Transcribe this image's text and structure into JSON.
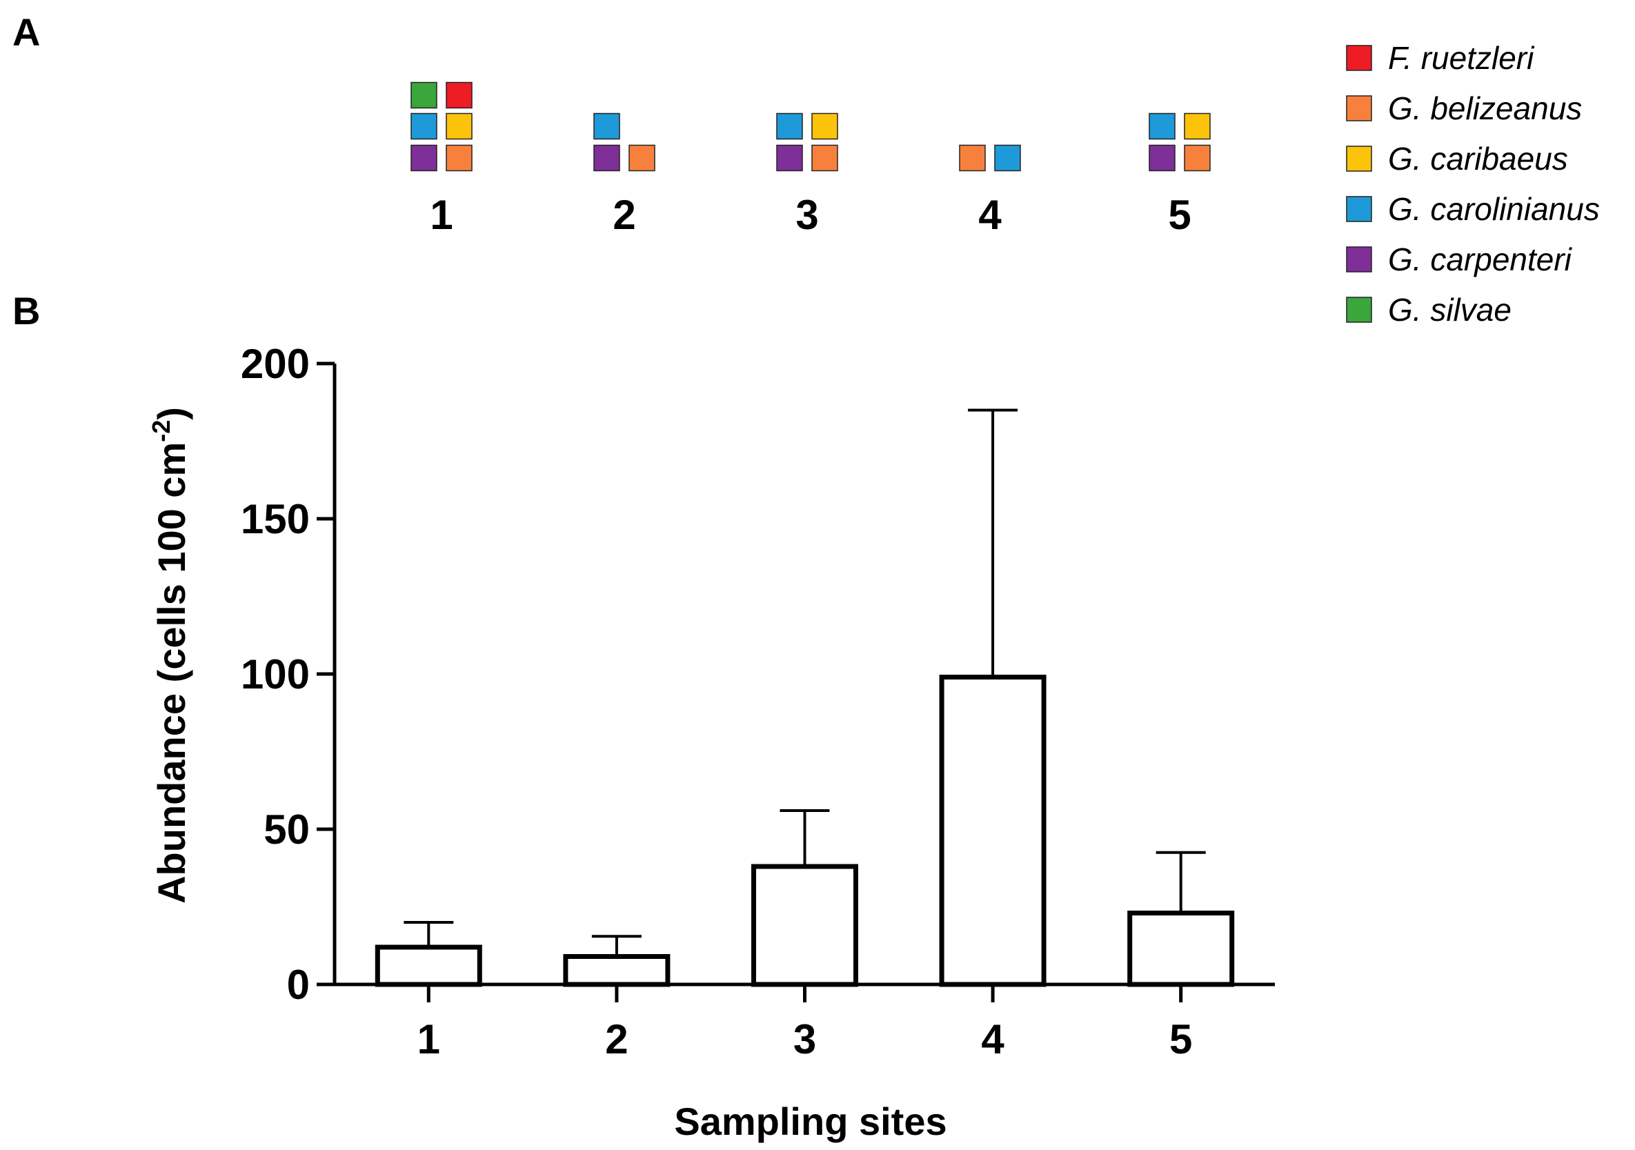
{
  "panel_labels": {
    "a": "A",
    "b": "B"
  },
  "legend": [
    {
      "name": "F. ruetzleri",
      "color": "#ee1c25"
    },
    {
      "name": "G. belizeanus",
      "color": "#f7813c"
    },
    {
      "name": "G. caribaeus",
      "color": "#fcc30b"
    },
    {
      "name": "G. carolinianus",
      "color": "#1e9ad8"
    },
    {
      "name": "G. carpenteri",
      "color": "#7e2f98"
    },
    {
      "name": "G. silvae",
      "color": "#3aa63c"
    }
  ],
  "presence": [
    {
      "site": "1",
      "species": [
        "G. silvae",
        "F. ruetzleri",
        "G. carolinianus",
        "G. caribaeus",
        "G. carpenteri",
        "G. belizeanus"
      ]
    },
    {
      "site": "2",
      "species": [
        "G. carolinianus",
        "G. carpenteri",
        "G. belizeanus"
      ]
    },
    {
      "site": "3",
      "species": [
        "G. carolinianus",
        "G. caribaeus",
        "G. carpenteri",
        "G. belizeanus"
      ]
    },
    {
      "site": "4",
      "species": [
        "G. belizeanus",
        "G. carolinianus"
      ]
    },
    {
      "site": "5",
      "species": [
        "G. carolinianus",
        "G. caribaeus",
        "G. carpenteri",
        "G. belizeanus"
      ]
    }
  ],
  "chart_data": {
    "type": "bar",
    "categories": [
      "1",
      "2",
      "3",
      "4",
      "5"
    ],
    "values": [
      12,
      9,
      38,
      99,
      23
    ],
    "errors": [
      8,
      6.5,
      18,
      86,
      19.5
    ],
    "xlabel": "Sampling sites",
    "ylabel": "Abundance (cells 100 cm",
    "ylabel_sup": "-2",
    "ylabel_end": ")",
    "ylim": [
      0,
      200
    ],
    "yticks": [
      "0",
      "50",
      "100",
      "150",
      "200"
    ]
  }
}
